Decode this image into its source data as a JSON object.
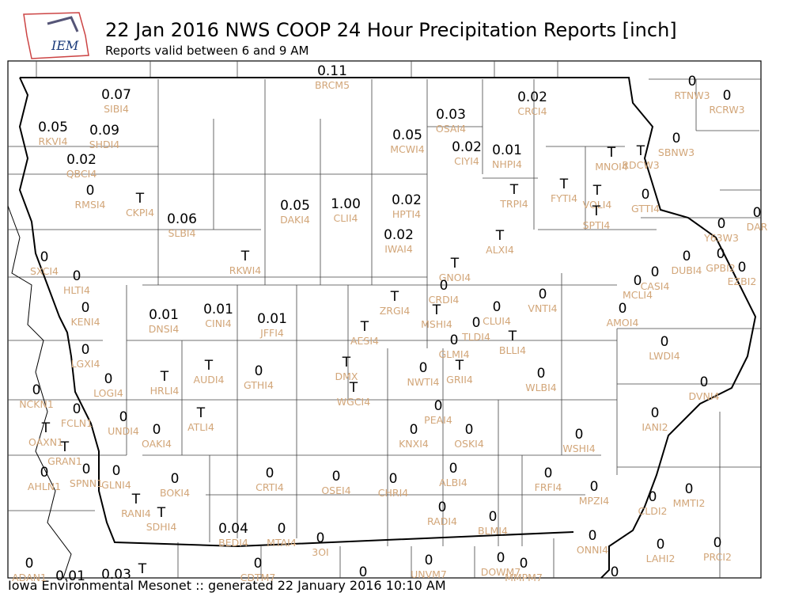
{
  "header": {
    "logo": "IEM",
    "title": "22 Jan 2016 NWS COOP 24 Hour Precipitation Reports [inch]",
    "subtitle": "Reports valid between 6 and 9 AM"
  },
  "footer": "Iowa Environmental Mesonet :: generated 22 January 2016 10:10 AM",
  "stations": [
    {
      "id": "BRCM5",
      "value": "0.11"
    },
    {
      "id": "SIBI4",
      "value": "0.07"
    },
    {
      "id": "CRCI4",
      "value": "0.02"
    },
    {
      "id": "OSAI4",
      "value": "0.03"
    },
    {
      "id": "RKVI4",
      "value": "0.05"
    },
    {
      "id": "SHDI4",
      "value": "0.09"
    },
    {
      "id": "MCWI4",
      "value": "0.05"
    },
    {
      "id": "CIYI4",
      "value": "0.02"
    },
    {
      "id": "NHPI4",
      "value": "0.01"
    },
    {
      "id": "QBCI4",
      "value": "0.02"
    },
    {
      "id": "RMSI4",
      "value": "0"
    },
    {
      "id": "CKPI4",
      "value": "T"
    },
    {
      "id": "DAKI4",
      "value": "0.05"
    },
    {
      "id": "CLII4",
      "value": "1.00"
    },
    {
      "id": "HPTI4",
      "value": "0.02"
    },
    {
      "id": "SLBI4",
      "value": "0.06"
    },
    {
      "id": "IWAI4",
      "value": "0.02"
    },
    {
      "id": "TRPI4",
      "value": "T"
    },
    {
      "id": "FYTI4",
      "value": "T"
    },
    {
      "id": "VOLI4",
      "value": "T"
    },
    {
      "id": "SPTI4",
      "value": "T"
    },
    {
      "id": "MNOI4",
      "value": "T"
    },
    {
      "id": "RDCW3",
      "value": "T"
    },
    {
      "id": "SBNW3",
      "value": "0"
    },
    {
      "id": "RTNW3",
      "value": "0"
    },
    {
      "id": "RCRW3",
      "value": "0"
    },
    {
      "id": "GTTI4",
      "value": "0"
    },
    {
      "id": "Y63W3",
      "value": "0"
    },
    {
      "id": "DAR",
      "value": "0"
    },
    {
      "id": "ALXI4",
      "value": "T"
    },
    {
      "id": "DUBI4",
      "value": "0"
    },
    {
      "id": "GPBI2",
      "value": "0"
    },
    {
      "id": "EZBI2",
      "value": "0"
    },
    {
      "id": "SXCI4",
      "value": "0"
    },
    {
      "id": "RKWI4",
      "value": "T"
    },
    {
      "id": "GNOI4",
      "value": "T"
    },
    {
      "id": "HLTI4",
      "value": "0"
    },
    {
      "id": "CRDI4",
      "value": "0"
    },
    {
      "id": "CASI4",
      "value": "0"
    },
    {
      "id": "MCLI4",
      "value": "0"
    },
    {
      "id": "ZRGI4",
      "value": "T"
    },
    {
      "id": "MSHI4",
      "value": "T"
    },
    {
      "id": "VNTI4",
      "value": "0"
    },
    {
      "id": "KENI4",
      "value": "0"
    },
    {
      "id": "DNSI4",
      "value": "0.01"
    },
    {
      "id": "CINI4",
      "value": "0.01"
    },
    {
      "id": "JFFI4",
      "value": "0.01"
    },
    {
      "id": "CLUI4",
      "value": "0"
    },
    {
      "id": "AMOI4",
      "value": "0"
    },
    {
      "id": "TLDI4",
      "value": "0"
    },
    {
      "id": "AESI4",
      "value": "T"
    },
    {
      "id": "BLLI4",
      "value": "T"
    },
    {
      "id": "GLMI4",
      "value": "0"
    },
    {
      "id": "LWDI4",
      "value": "0"
    },
    {
      "id": "LGXI4",
      "value": "0"
    },
    {
      "id": "DMX",
      "value": "T"
    },
    {
      "id": "GRII4",
      "value": "T"
    },
    {
      "id": "NWTI4",
      "value": "0"
    },
    {
      "id": "WLBI4",
      "value": "0"
    },
    {
      "id": "GTHI4",
      "value": "0"
    },
    {
      "id": "AUDI4",
      "value": "T"
    },
    {
      "id": "HRLI4",
      "value": "T"
    },
    {
      "id": "LOGI4",
      "value": "0"
    },
    {
      "id": "NCKN1",
      "value": "0"
    },
    {
      "id": "WGCI4",
      "value": "T"
    },
    {
      "id": "DVNI4",
      "value": "0"
    },
    {
      "id": "FCLN1",
      "value": "0"
    },
    {
      "id": "PEAI4",
      "value": "0"
    },
    {
      "id": "ATLI4",
      "value": "T"
    },
    {
      "id": "IANI2",
      "value": "0"
    },
    {
      "id": "UNDI4",
      "value": "0"
    },
    {
      "id": "OAKI4",
      "value": "0"
    },
    {
      "id": "KNXI4",
      "value": "0"
    },
    {
      "id": "OSKI4",
      "value": "0"
    },
    {
      "id": "WSHI4",
      "value": "0"
    },
    {
      "id": "OAXN1",
      "value": "T"
    },
    {
      "id": "GRAN1",
      "value": "T"
    },
    {
      "id": "AHLN1",
      "value": "0"
    },
    {
      "id": "SPNN1",
      "value": "0"
    },
    {
      "id": "GLNI4",
      "value": "0"
    },
    {
      "id": "CRTI4",
      "value": "0"
    },
    {
      "id": "OSEI4",
      "value": "0"
    },
    {
      "id": "CHRI4",
      "value": "0"
    },
    {
      "id": "ALBI4",
      "value": "0"
    },
    {
      "id": "FRFI4",
      "value": "0"
    },
    {
      "id": "BOKI4",
      "value": "0"
    },
    {
      "id": "MPZI4",
      "value": "0"
    },
    {
      "id": "MMTI2",
      "value": "0"
    },
    {
      "id": "CLDI2",
      "value": "0"
    },
    {
      "id": "RANI4",
      "value": "T"
    },
    {
      "id": "SDHI4",
      "value": "T"
    },
    {
      "id": "RADI4",
      "value": "0"
    },
    {
      "id": "BLMI4",
      "value": "0"
    },
    {
      "id": "BEDI4",
      "value": "0.04"
    },
    {
      "id": "MTAI4",
      "value": "0"
    },
    {
      "id": "3OI",
      "value": "0"
    },
    {
      "id": "ONNI4",
      "value": "0"
    },
    {
      "id": "LAHI2",
      "value": "0"
    },
    {
      "id": "PRCI2",
      "value": "0"
    },
    {
      "id": "ADAN1",
      "value": "0"
    },
    {
      "value": "0.01"
    },
    {
      "value": "0.03"
    },
    {
      "value": "T"
    },
    {
      "id": "CDTM7",
      "value": "0"
    },
    {
      "id": "UNVM7",
      "value": "0"
    },
    {
      "id": "DOWM7",
      "value": "0"
    },
    {
      "id": "MMPM7",
      "value": "0"
    },
    {
      "value": "0"
    },
    {
      "value": "0"
    }
  ]
}
